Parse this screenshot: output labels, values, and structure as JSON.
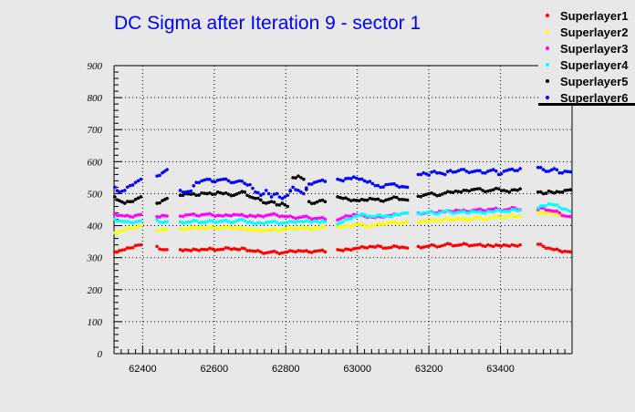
{
  "chart_data": {
    "type": "scatter",
    "title": "DC Sigma after Iteration 9 - sector 1",
    "xlabel": "",
    "ylabel": "",
    "xlim": [
      62320,
      63600
    ],
    "ylim": [
      0,
      900
    ],
    "grid": true,
    "legend_position": "top-right",
    "x_ticks": [
      "62400",
      "62600",
      "62800",
      "63000",
      "63200",
      "63400"
    ],
    "y_ticks": [
      "0",
      "100",
      "200",
      "300",
      "400",
      "500",
      "600",
      "700",
      "800",
      "900"
    ],
    "x": [
      62322,
      62335,
      62350,
      62365,
      62380,
      62395,
      62440,
      62455,
      62468,
      62505,
      62520,
      62535,
      62550,
      62565,
      62580,
      62595,
      62610,
      62625,
      62640,
      62655,
      62670,
      62685,
      62700,
      62715,
      62730,
      62745,
      62760,
      62775,
      62790,
      62805,
      62820,
      62835,
      62850,
      62865,
      62880,
      62895,
      62910,
      62945,
      62960,
      62975,
      62990,
      63005,
      63020,
      63035,
      63050,
      63065,
      63080,
      63095,
      63110,
      63125,
      63140,
      63170,
      63185,
      63200,
      63215,
      63230,
      63245,
      63260,
      63275,
      63290,
      63305,
      63320,
      63335,
      63350,
      63365,
      63380,
      63395,
      63410,
      63425,
      63440,
      63455,
      63505,
      63520,
      63535,
      63550,
      63565,
      63580,
      63595
    ],
    "series": [
      {
        "name": "Superlayer1",
        "color": "#ff0000",
        "values": [
          318,
          322,
          325,
          330,
          338,
          340,
          335,
          325,
          325,
          325,
          325,
          322,
          325,
          326,
          325,
          327,
          325,
          326,
          330,
          328,
          325,
          328,
          322,
          320,
          318,
          315,
          318,
          316,
          315,
          318,
          320,
          322,
          320,
          318,
          320,
          322,
          318,
          325,
          322,
          326,
          328,
          330,
          332,
          335,
          333,
          335,
          330,
          332,
          335,
          333,
          330,
          335,
          333,
          336,
          338,
          335,
          340,
          342,
          338,
          340,
          342,
          338,
          340,
          337,
          340,
          335,
          338,
          340,
          336,
          338,
          340,
          342,
          335,
          330,
          325,
          322,
          320,
          318
        ]
      },
      {
        "name": "Superlayer2",
        "color": "#ffff00",
        "values": [
          378,
          382,
          385,
          392,
          395,
          398,
          385,
          388,
          390,
          392,
          390,
          392,
          393,
          395,
          392,
          395,
          393,
          392,
          395,
          393,
          392,
          390,
          388,
          386,
          385,
          387,
          388,
          386,
          388,
          390,
          392,
          393,
          392,
          390,
          392,
          393,
          395,
          398,
          395,
          400,
          402,
          405,
          400,
          398,
          402,
          405,
          408,
          410,
          408,
          410,
          412,
          412,
          415,
          413,
          418,
          415,
          420,
          418,
          422,
          420,
          418,
          422,
          425,
          420,
          423,
          425,
          428,
          425,
          430,
          428,
          430,
          440,
          438,
          442,
          435,
          432,
          430,
          428
        ]
      },
      {
        "name": "Superlayer3",
        "color": "#ff00ff",
        "values": [
          438,
          432,
          430,
          428,
          432,
          435,
          428,
          432,
          430,
          430,
          433,
          435,
          432,
          434,
          436,
          433,
          432,
          430,
          432,
          435,
          433,
          430,
          432,
          428,
          430,
          432,
          435,
          433,
          430,
          428,
          426,
          425,
          428,
          425,
          422,
          424,
          420,
          418,
          425,
          430,
          435,
          432,
          430,
          428,
          425,
          428,
          430,
          432,
          435,
          438,
          440,
          440,
          438,
          442,
          440,
          445,
          443,
          445,
          448,
          446,
          445,
          447,
          450,
          448,
          450,
          452,
          450,
          448,
          452,
          455,
          450,
          450,
          455,
          448,
          445,
          440,
          430,
          428
        ]
      },
      {
        "name": "Superlayer4",
        "color": "#00ffff",
        "values": [
          420,
          415,
          412,
          410,
          412,
          415,
          418,
          410,
          412,
          412,
          410,
          412,
          415,
          410,
          412,
          414,
          412,
          415,
          413,
          412,
          418,
          415,
          412,
          405,
          408,
          410,
          412,
          410,
          408,
          410,
          412,
          414,
          412,
          413,
          415,
          410,
          412,
          405,
          412,
          420,
          428,
          432,
          435,
          430,
          428,
          432,
          430,
          428,
          435,
          438,
          440,
          438,
          440,
          442,
          438,
          440,
          445,
          442,
          440,
          443,
          440,
          445,
          442,
          440,
          445,
          442,
          448,
          445,
          445,
          450,
          448,
          455,
          462,
          468,
          465,
          458,
          452,
          445
        ]
      },
      {
        "name": "Superlayer5",
        "color": "#000000",
        "values": [
          490,
          478,
          470,
          475,
          482,
          490,
          470,
          478,
          485,
          495,
          500,
          498,
          495,
          502,
          500,
          498,
          505,
          500,
          498,
          495,
          502,
          505,
          490,
          485,
          480,
          470,
          475,
          465,
          470,
          460,
          550,
          555,
          545,
          475,
          470,
          478,
          475,
          490,
          485,
          482,
          480,
          478,
          480,
          485,
          482,
          478,
          480,
          485,
          488,
          482,
          480,
          492,
          495,
          500,
          498,
          495,
          502,
          505,
          508,
          505,
          510,
          512,
          515,
          510,
          508,
          512,
          515,
          510,
          505,
          512,
          515,
          505,
          500,
          508,
          502,
          505,
          510,
          512
        ]
      },
      {
        "name": "Superlayer6",
        "color": "#0000ff",
        "values": [
          520,
          505,
          510,
          525,
          535,
          545,
          555,
          565,
          575,
          510,
          505,
          508,
          535,
          540,
          545,
          538,
          542,
          545,
          540,
          535,
          540,
          532,
          528,
          505,
          495,
          510,
          490,
          500,
          485,
          495,
          520,
          510,
          500,
          530,
          535,
          540,
          538,
          545,
          540,
          548,
          552,
          545,
          540,
          538,
          525,
          520,
          528,
          530,
          525,
          522,
          520,
          560,
          565,
          558,
          570,
          565,
          560,
          572,
          568,
          575,
          570,
          568,
          572,
          565,
          570,
          575,
          560,
          570,
          575,
          572,
          578,
          582,
          575,
          570,
          578,
          565,
          570,
          568
        ]
      }
    ]
  }
}
